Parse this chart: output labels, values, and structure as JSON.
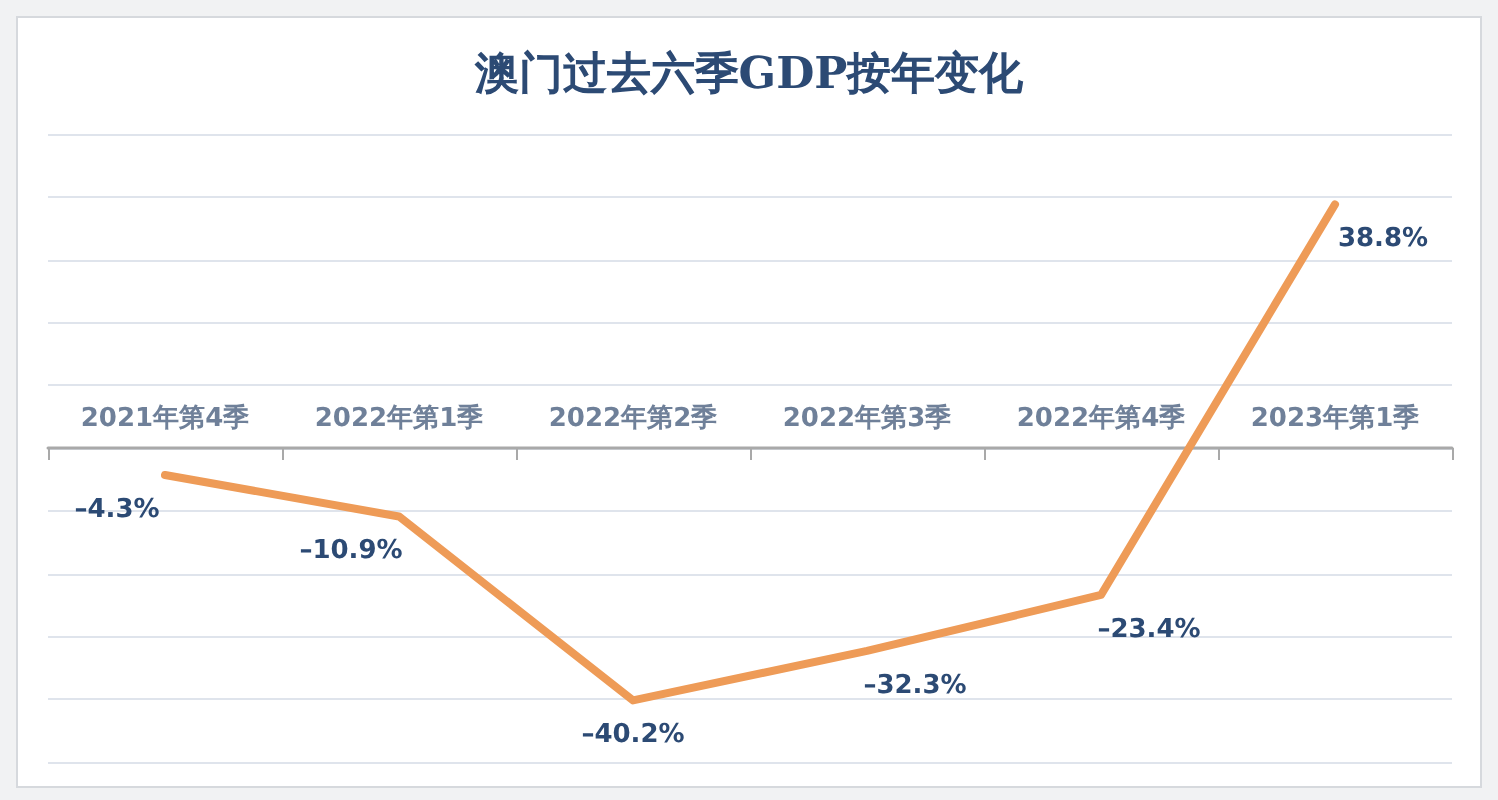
{
  "chart_data": {
    "type": "line",
    "title": "澳门过去六季GDP按年变化",
    "categories": [
      "2021年第4季",
      "2022年第1季",
      "2022年第2季",
      "2022年第3季",
      "2022年第4季",
      "2023年第1季"
    ],
    "values": [
      -4.3,
      -10.9,
      -40.2,
      -32.3,
      -23.4,
      38.8
    ],
    "value_labels": [
      "–4.3%",
      "–10.9%",
      "–40.2%",
      "–32.3%",
      "–23.4%",
      "38.8%"
    ],
    "color": "#ee9b57",
    "ylim": [
      -50,
      50
    ],
    "yticks": [
      {
        "value": -50,
        "label": null
      },
      {
        "value": -40,
        "label": null
      },
      {
        "value": -30,
        "label": null
      },
      {
        "value": -20,
        "label": null
      },
      {
        "value": -10,
        "label": null
      },
      {
        "value": 0,
        "label": null
      },
      {
        "value": 10,
        "label": null
      },
      {
        "value": 20,
        "label": null
      },
      {
        "value": 30,
        "label": null
      },
      {
        "value": 40,
        "label": null
      },
      {
        "value": 50,
        "label": null
      }
    ],
    "grid": "y",
    "tick_labels": "x",
    "marker": "none",
    "line_style": "solid"
  }
}
